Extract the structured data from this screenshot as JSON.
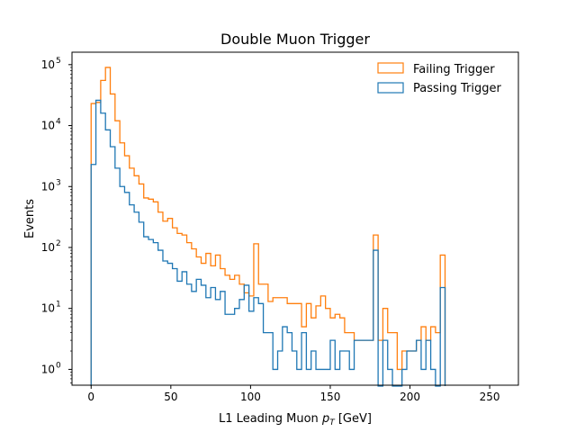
{
  "chart_data": {
    "type": "histogram",
    "title": "Double Muon Trigger",
    "xlabel_main": "L1 Leading Muon ",
    "xlabel_italic_base": "p",
    "xlabel_italic_sub": "T",
    "xlabel_unit": " [GeV]",
    "ylabel": "Events",
    "xlim": [
      -12,
      268
    ],
    "ylim": [
      0.55,
      160000
    ],
    "yscale": "log",
    "bin_edges_start": 0,
    "bin_width": 3,
    "x_ticks": [
      0,
      50,
      100,
      150,
      200,
      250
    ],
    "x_tick_labels": [
      "0",
      "50",
      "100",
      "150",
      "200",
      "250"
    ],
    "y_ticks": [
      1,
      10,
      100,
      1000,
      10000,
      100000
    ],
    "y_tick_base": "10",
    "y_tick_exponents": [
      "0",
      "1",
      "2",
      "3",
      "4",
      "5"
    ],
    "legend_position": "upper-right",
    "series": [
      {
        "name": "Failing Trigger",
        "color": "#ff7f0e",
        "values": [
          23000,
          24000,
          55000,
          90000,
          33000,
          12000,
          5200,
          3200,
          2000,
          1500,
          1100,
          650,
          620,
          560,
          380,
          270,
          300,
          210,
          170,
          160,
          120,
          95,
          70,
          55,
          80,
          50,
          75,
          45,
          35,
          30,
          35,
          25,
          18,
          16,
          115,
          25,
          25,
          13,
          15,
          15,
          15,
          12,
          12,
          12,
          5,
          12,
          7,
          11,
          16,
          10,
          7,
          8,
          7,
          4,
          4,
          3,
          3,
          3,
          3,
          160,
          3,
          10,
          4,
          4,
          1,
          2,
          2,
          2,
          3,
          5,
          3,
          5,
          4,
          75
        ]
      },
      {
        "name": "Passing Trigger",
        "color": "#1f77b4",
        "values": [
          2300,
          26000,
          16000,
          8500,
          4500,
          2000,
          1000,
          800,
          500,
          380,
          260,
          150,
          135,
          120,
          90,
          60,
          55,
          45,
          28,
          40,
          25,
          19,
          30,
          24,
          15,
          22,
          14,
          19,
          8,
          8,
          10,
          14,
          24,
          9,
          15,
          12,
          4,
          4,
          1,
          2,
          5,
          4,
          2,
          1,
          4,
          1,
          2,
          1,
          1,
          1,
          3,
          1,
          2,
          2,
          1,
          3,
          3,
          3,
          3,
          90,
          0,
          3,
          1,
          0,
          0,
          1,
          2,
          2,
          3,
          1,
          3,
          1,
          0,
          22
        ]
      }
    ]
  }
}
